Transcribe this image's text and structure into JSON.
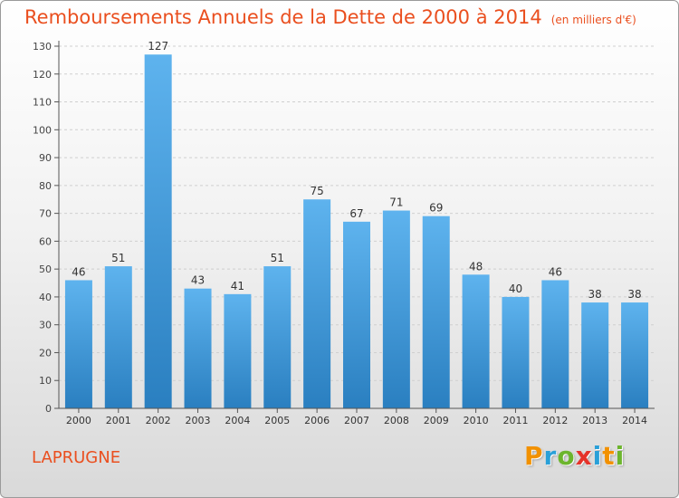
{
  "title": "Remboursements Annuels de la Dette de 2000 à 2014",
  "subtitle": "(en milliers d'€)",
  "location": "LAPRUGNE",
  "logo": {
    "text": "Proxiti",
    "letters": [
      {
        "ch": "P",
        "color": "#f29100"
      },
      {
        "ch": "r",
        "color": "#2aa0d8"
      },
      {
        "ch": "o",
        "color": "#6cb52d"
      },
      {
        "ch": "x",
        "color": "#e5332a"
      },
      {
        "ch": "i",
        "color": "#2aa0d8"
      },
      {
        "ch": "t",
        "color": "#f29100"
      },
      {
        "ch": "i",
        "color": "#6cb52d"
      }
    ]
  },
  "colors": {
    "title": "#ea4f1f",
    "bar_top": "#5eb3ee",
    "bar_bottom": "#2a7fc0",
    "axis": "#555555"
  },
  "chart_data": {
    "type": "bar",
    "categories": [
      "2000",
      "2001",
      "2002",
      "2003",
      "2004",
      "2005",
      "2006",
      "2007",
      "2008",
      "2009",
      "2010",
      "2011",
      "2012",
      "2013",
      "2014"
    ],
    "values": [
      46,
      51,
      127,
      43,
      41,
      51,
      75,
      67,
      71,
      69,
      48,
      40,
      46,
      38,
      38
    ],
    "ylim": [
      0,
      130
    ],
    "yticks": [
      0,
      10,
      20,
      30,
      40,
      50,
      60,
      70,
      80,
      90,
      100,
      110,
      120,
      130
    ],
    "grid": true,
    "data_labels": true,
    "title": "Remboursements Annuels de la Dette de 2000 à 2014",
    "xlabel": "",
    "ylabel": ""
  }
}
